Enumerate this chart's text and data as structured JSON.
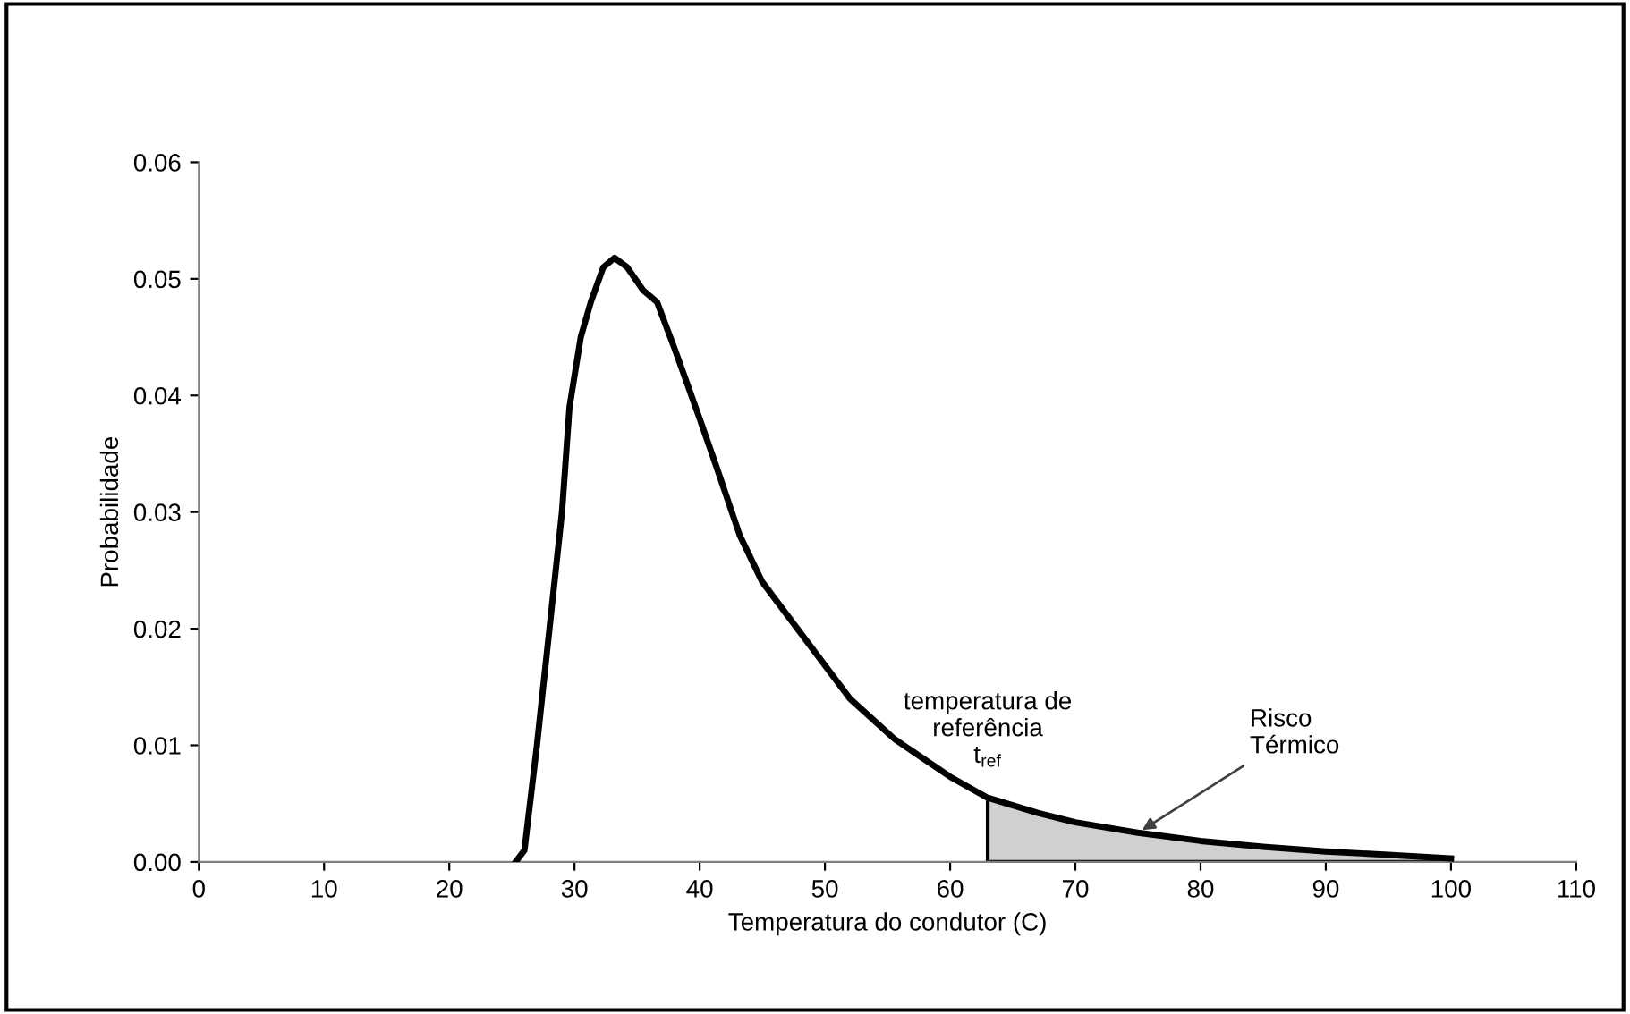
{
  "chart_data": {
    "type": "line",
    "xlabel": "Temperatura do condutor (C)",
    "ylabel": "Probabilidade",
    "xlim": [
      0,
      110
    ],
    "xticks": [
      0,
      10,
      20,
      30,
      40,
      50,
      60,
      70,
      80,
      90,
      100,
      110
    ],
    "ylim": [
      0,
      0.06
    ],
    "yticks": [
      {
        "value": 0,
        "label": "0.00"
      },
      {
        "value": 0.01,
        "label": "0.01"
      },
      {
        "value": 0.02,
        "label": "0.02"
      },
      {
        "value": 0.03,
        "label": "0.03"
      },
      {
        "value": 0.04,
        "label": "0.04"
      },
      {
        "value": 0.05,
        "label": "0.05"
      },
      {
        "value": 0.06,
        "label": "0.06"
      }
    ],
    "grid": false,
    "legend": false,
    "marker": "none",
    "line_style": "solid",
    "series": [
      {
        "color": "#000000",
        "x": [
          25.3,
          26,
          27,
          28,
          29,
          29.6,
          30.5,
          31.3,
          32.3,
          33.2,
          34.2,
          35.5,
          36.6,
          38,
          40,
          41.3,
          43.2,
          45,
          48.5,
          52,
          55.6,
          60,
          63,
          67,
          70,
          75,
          80,
          85,
          90,
          95,
          100
        ],
        "values": [
          0,
          0.001,
          0.01,
          0.02,
          0.03,
          0.039,
          0.045,
          0.048,
          0.051,
          0.0518,
          0.051,
          0.049,
          0.048,
          0.044,
          0.038,
          0.034,
          0.028,
          0.024,
          0.019,
          0.014,
          0.0105,
          0.0073,
          0.0055,
          0.0042,
          0.0034,
          0.0025,
          0.0018,
          0.0013,
          0.0009,
          0.0006,
          0.0003
        ]
      },
      {
        "type": "area",
        "color": "#d0d0d0",
        "x": [
          63,
          67,
          70,
          75,
          80,
          85,
          90,
          95,
          100
        ],
        "values": [
          0.0055,
          0.0042,
          0.0034,
          0.0025,
          0.0018,
          0.0013,
          0.0009,
          0.0006,
          0.0003
        ]
      }
    ],
    "annotations": [
      {
        "text": "temperatura de\nreferência\nt$_{ref}$",
        "x": 63,
        "y": 0.0055
      },
      {
        "text": "Risco\nTérmico",
        "x": 75,
        "y": 0.0025
      }
    ]
  }
}
